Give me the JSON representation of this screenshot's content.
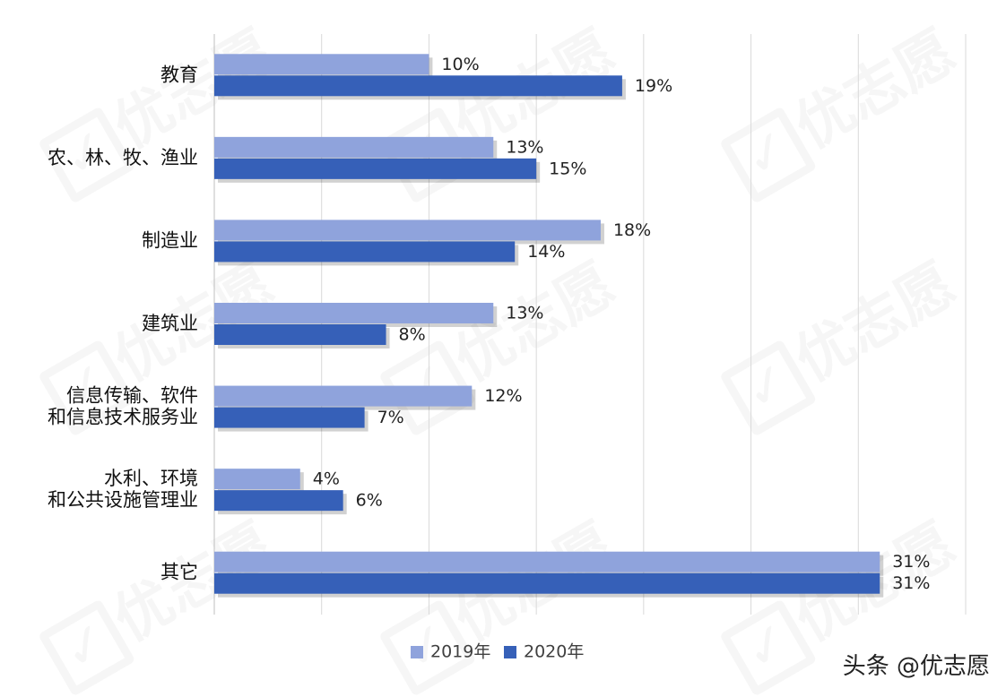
{
  "watermark": {
    "text": "优志愿"
  },
  "credit": "头条 @优志愿",
  "colors": {
    "series_2019": "#8fa3dc",
    "series_2020": "#3660b8",
    "grid": "#d9d9d9",
    "text": "#404040"
  },
  "chart_data": {
    "type": "bar",
    "orientation": "horizontal",
    "categories": [
      [
        "教育"
      ],
      [
        "农、林、牧、渔业"
      ],
      [
        "制造业"
      ],
      [
        "建筑业"
      ],
      [
        "信息传输、软件",
        "和信息技术服务业"
      ],
      [
        "水利、环境",
        "和公共设施管理业"
      ],
      [
        "其它"
      ]
    ],
    "series": [
      {
        "name": "2019年",
        "values": [
          10,
          13,
          18,
          13,
          12,
          4,
          31
        ],
        "labels": [
          "10%",
          "13%",
          "18%",
          "13%",
          "12%",
          "4%",
          "31%"
        ]
      },
      {
        "name": "2020年",
        "values": [
          19,
          15,
          14,
          8,
          7,
          6,
          31
        ],
        "labels": [
          "19%",
          "15%",
          "14%",
          "8%",
          "7%",
          "6%",
          "31%"
        ]
      }
    ],
    "xlim": [
      0,
      35
    ],
    "grid_step": 5,
    "grid": true,
    "legend_position": "bottom-center",
    "title": "",
    "xlabel": "",
    "ylabel": ""
  }
}
